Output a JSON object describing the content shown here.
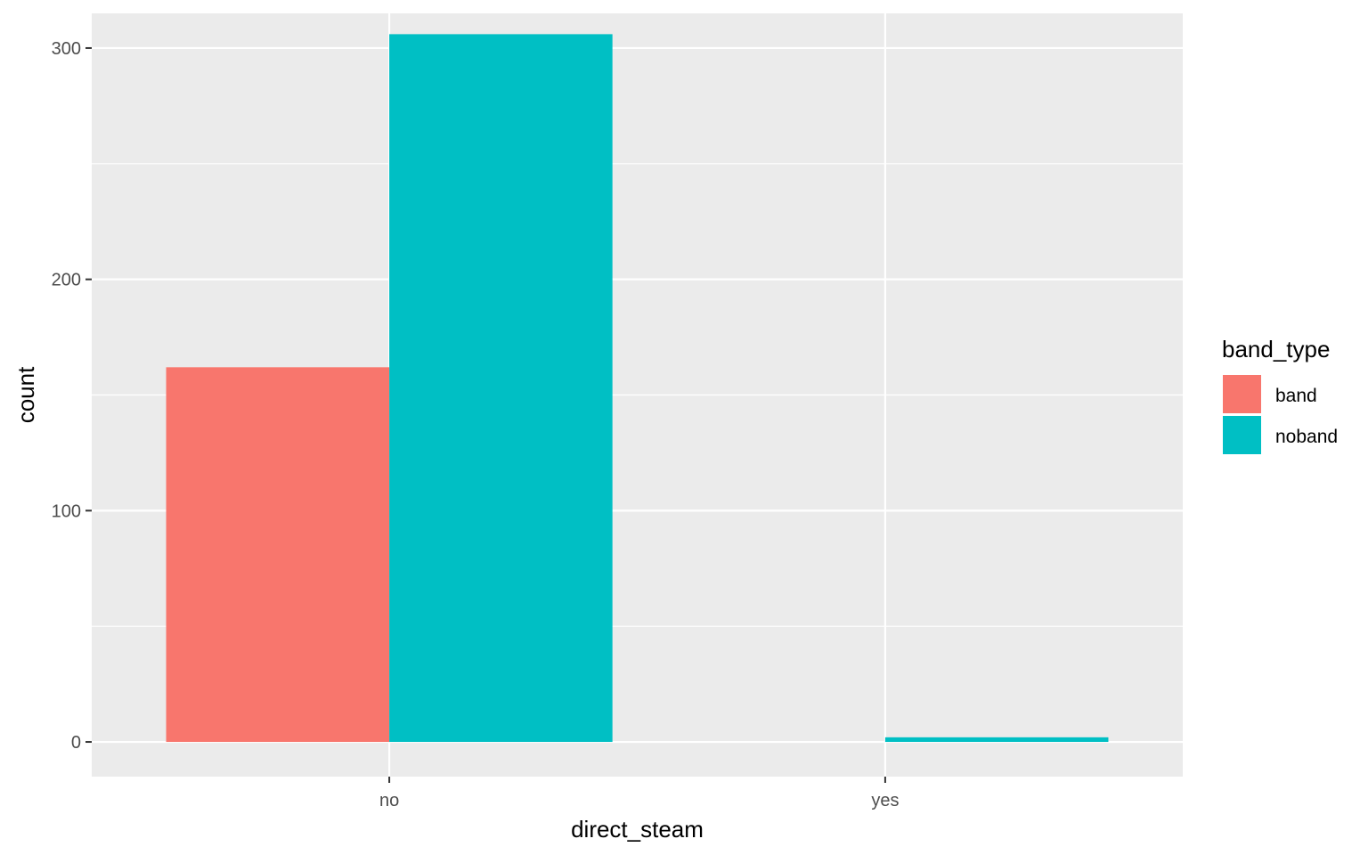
{
  "chart_data": {
    "type": "bar",
    "categories": [
      "no",
      "yes"
    ],
    "series": [
      {
        "name": "band",
        "color": "#F8766D",
        "values": [
          162,
          0
        ]
      },
      {
        "name": "noband",
        "color": "#00BFC4",
        "values": [
          306,
          2
        ]
      }
    ],
    "xlabel": "direct_steam",
    "ylabel": "count",
    "ylim": [
      -15,
      315
    ],
    "yticks": [
      0,
      100,
      200,
      300
    ],
    "yticks_minor": [
      50,
      150,
      250
    ],
    "grid": true,
    "position": "dodge",
    "legend": {
      "title": "band_type",
      "placement": "right"
    },
    "colors": {
      "panel_bg": "#EBEBEB",
      "grid": "#FFFFFF",
      "tick_text": "#4D4D4D"
    }
  }
}
